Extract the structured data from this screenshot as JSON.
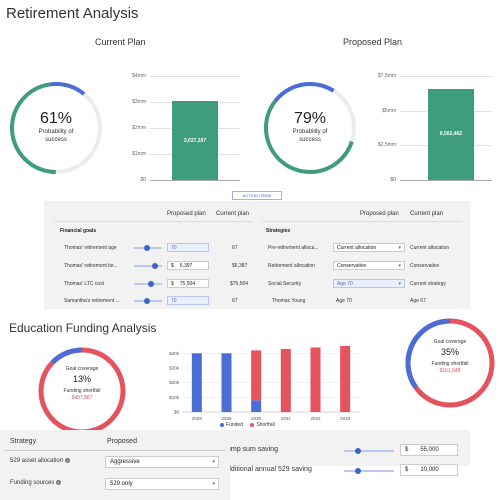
{
  "retirement": {
    "title": "Retirement Analysis",
    "current": {
      "heading": "Current Plan",
      "probability": "61%",
      "probability_label_line1": "Probability of",
      "probability_label_line2": "success",
      "probability_value": 0.61,
      "y_ticks": [
        "$4mm",
        "$3mm",
        "$2mm",
        "$1mm",
        "$0"
      ],
      "bar_label": "3,027,197",
      "bar_value": 3027197,
      "y_max": 4000000
    },
    "proposed": {
      "heading": "Proposed Plan",
      "probability": "79%",
      "probability_label_line1": "Probability of",
      "probability_label_line2": "success",
      "probability_value": 0.79,
      "y_ticks": [
        "$7.5mm",
        "$5mm",
        "$2.5mm",
        "$0"
      ],
      "bar_label": "6,562,462",
      "bar_value": 6562462,
      "y_max": 7500000
    },
    "action_items_label": "ACTION ITEMS",
    "table": {
      "left_header": {
        "proposed": "Proposed plan",
        "current": "Current plan"
      },
      "right_header": {
        "proposed": "Proposed plan",
        "current": "Current plan"
      },
      "left_section": "Financial goals",
      "right_section": "Strategies",
      "left_rows": [
        {
          "label": "Thomas' retirement age",
          "proposed": "70",
          "current": "67"
        },
        {
          "label": "Thomas' retirement ite...",
          "currency": "$",
          "proposed": "6,397",
          "current": "$6,387"
        },
        {
          "label": "Thomas' LTC cost",
          "currency": "$",
          "proposed": "75,504",
          "current": "$75,504"
        },
        {
          "label": "Samantha's retirement ...",
          "proposed": "70",
          "current": "67"
        }
      ],
      "right_rows": [
        {
          "label": "Pre-retirement alloca...",
          "proposed": "Current allocation",
          "current": "Current allocation"
        },
        {
          "label": "Retirement allocation",
          "proposed": "Conservative",
          "current": "Conservative"
        },
        {
          "label": "Social Security",
          "proposed": "Age 70",
          "current": "Current strategy"
        },
        {
          "label": "Thomas Young",
          "proposed": "Age 70",
          "current": "Age 67"
        }
      ]
    }
  },
  "education": {
    "title": "Education Funding Analysis",
    "left_donut": {
      "label": "Goal coverage",
      "pct": "13%",
      "pct_value": 0.13,
      "shortfall_label": "Funding shortfall",
      "shortfall": "$407,887"
    },
    "right_donut": {
      "label": "Goal coverage",
      "pct": "35%",
      "pct_value": 0.35,
      "shortfall_label": "Funding shortfall",
      "shortfall": "$161,648"
    },
    "legend": {
      "funded": "Funded",
      "shortfall": "Shortfall"
    },
    "colors": {
      "funded": "#4a6ed6",
      "shortfall": "#e5535f",
      "green": "#3f9d7d"
    },
    "strategy_table": {
      "header_strategy": "Strategy",
      "header_proposed": "Proposed",
      "rows": [
        {
          "label": "529 asset allocation",
          "value": "Aggressive"
        },
        {
          "label": "Funding sources",
          "value": "529 only"
        }
      ]
    },
    "savings": {
      "lump_sum_label": "ump sum saving",
      "lump_sum_currency": "$",
      "lump_sum_value": "55,000",
      "annual_label": "dditional annual 529 saving",
      "annual_currency": "$",
      "annual_value": "10,000"
    }
  },
  "chart_data": {
    "type": "bar",
    "stacked": true,
    "categories": [
      "2028",
      "2029",
      "2030",
      "2031",
      "2032",
      "2033"
    ],
    "series": [
      {
        "name": "Funded",
        "values": [
          40000,
          40000,
          8000,
          0,
          0,
          0
        ]
      },
      {
        "name": "Shortfall",
        "values": [
          0,
          0,
          34000,
          43000,
          44000,
          45000
        ]
      }
    ],
    "y_ticks": [
      "$40k",
      "$30k",
      "$20k",
      "$10k",
      "$0"
    ],
    "ylim": [
      0,
      45000
    ],
    "legend": "bottom"
  }
}
